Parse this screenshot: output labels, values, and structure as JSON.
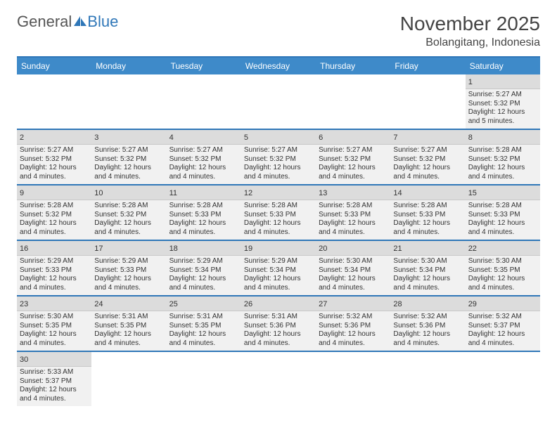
{
  "logo": {
    "part1": "General",
    "part2": "Blue"
  },
  "title": "November 2025",
  "location": "Bolangitang, Indonesia",
  "colors": {
    "header_bg": "#3e8ac9",
    "border": "#2f77b8",
    "cell_bg": "#f1f1f1",
    "daynum_bg": "#dcdcdc",
    "text": "#333333"
  },
  "day_names": [
    "Sunday",
    "Monday",
    "Tuesday",
    "Wednesday",
    "Thursday",
    "Friday",
    "Saturday"
  ],
  "weeks": [
    [
      null,
      null,
      null,
      null,
      null,
      null,
      {
        "n": "1",
        "sr": "5:27 AM",
        "ss": "5:32 PM",
        "dl": "12 hours and 5 minutes."
      }
    ],
    [
      {
        "n": "2",
        "sr": "5:27 AM",
        "ss": "5:32 PM",
        "dl": "12 hours and 4 minutes."
      },
      {
        "n": "3",
        "sr": "5:27 AM",
        "ss": "5:32 PM",
        "dl": "12 hours and 4 minutes."
      },
      {
        "n": "4",
        "sr": "5:27 AM",
        "ss": "5:32 PM",
        "dl": "12 hours and 4 minutes."
      },
      {
        "n": "5",
        "sr": "5:27 AM",
        "ss": "5:32 PM",
        "dl": "12 hours and 4 minutes."
      },
      {
        "n": "6",
        "sr": "5:27 AM",
        "ss": "5:32 PM",
        "dl": "12 hours and 4 minutes."
      },
      {
        "n": "7",
        "sr": "5:27 AM",
        "ss": "5:32 PM",
        "dl": "12 hours and 4 minutes."
      },
      {
        "n": "8",
        "sr": "5:28 AM",
        "ss": "5:32 PM",
        "dl": "12 hours and 4 minutes."
      }
    ],
    [
      {
        "n": "9",
        "sr": "5:28 AM",
        "ss": "5:32 PM",
        "dl": "12 hours and 4 minutes."
      },
      {
        "n": "10",
        "sr": "5:28 AM",
        "ss": "5:32 PM",
        "dl": "12 hours and 4 minutes."
      },
      {
        "n": "11",
        "sr": "5:28 AM",
        "ss": "5:33 PM",
        "dl": "12 hours and 4 minutes."
      },
      {
        "n": "12",
        "sr": "5:28 AM",
        "ss": "5:33 PM",
        "dl": "12 hours and 4 minutes."
      },
      {
        "n": "13",
        "sr": "5:28 AM",
        "ss": "5:33 PM",
        "dl": "12 hours and 4 minutes."
      },
      {
        "n": "14",
        "sr": "5:28 AM",
        "ss": "5:33 PM",
        "dl": "12 hours and 4 minutes."
      },
      {
        "n": "15",
        "sr": "5:28 AM",
        "ss": "5:33 PM",
        "dl": "12 hours and 4 minutes."
      }
    ],
    [
      {
        "n": "16",
        "sr": "5:29 AM",
        "ss": "5:33 PM",
        "dl": "12 hours and 4 minutes."
      },
      {
        "n": "17",
        "sr": "5:29 AM",
        "ss": "5:33 PM",
        "dl": "12 hours and 4 minutes."
      },
      {
        "n": "18",
        "sr": "5:29 AM",
        "ss": "5:34 PM",
        "dl": "12 hours and 4 minutes."
      },
      {
        "n": "19",
        "sr": "5:29 AM",
        "ss": "5:34 PM",
        "dl": "12 hours and 4 minutes."
      },
      {
        "n": "20",
        "sr": "5:30 AM",
        "ss": "5:34 PM",
        "dl": "12 hours and 4 minutes."
      },
      {
        "n": "21",
        "sr": "5:30 AM",
        "ss": "5:34 PM",
        "dl": "12 hours and 4 minutes."
      },
      {
        "n": "22",
        "sr": "5:30 AM",
        "ss": "5:35 PM",
        "dl": "12 hours and 4 minutes."
      }
    ],
    [
      {
        "n": "23",
        "sr": "5:30 AM",
        "ss": "5:35 PM",
        "dl": "12 hours and 4 minutes."
      },
      {
        "n": "24",
        "sr": "5:31 AM",
        "ss": "5:35 PM",
        "dl": "12 hours and 4 minutes."
      },
      {
        "n": "25",
        "sr": "5:31 AM",
        "ss": "5:35 PM",
        "dl": "12 hours and 4 minutes."
      },
      {
        "n": "26",
        "sr": "5:31 AM",
        "ss": "5:36 PM",
        "dl": "12 hours and 4 minutes."
      },
      {
        "n": "27",
        "sr": "5:32 AM",
        "ss": "5:36 PM",
        "dl": "12 hours and 4 minutes."
      },
      {
        "n": "28",
        "sr": "5:32 AM",
        "ss": "5:36 PM",
        "dl": "12 hours and 4 minutes."
      },
      {
        "n": "29",
        "sr": "5:32 AM",
        "ss": "5:37 PM",
        "dl": "12 hours and 4 minutes."
      }
    ],
    [
      {
        "n": "30",
        "sr": "5:33 AM",
        "ss": "5:37 PM",
        "dl": "12 hours and 4 minutes."
      },
      null,
      null,
      null,
      null,
      null,
      null
    ]
  ],
  "labels": {
    "sunrise": "Sunrise: ",
    "sunset": "Sunset: ",
    "daylight": "Daylight: "
  }
}
